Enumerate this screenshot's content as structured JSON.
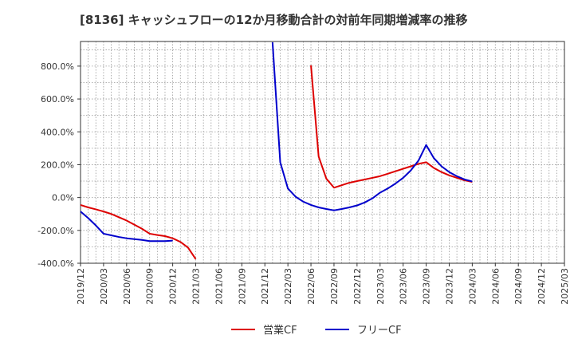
{
  "chart_data": {
    "type": "line",
    "title": "[8136]  キャッシュフローの12か月移動合計の対前年同期増減率の推移",
    "xlabel": "",
    "ylabel": "",
    "ylim": [
      -400,
      950
    ],
    "yticks": [
      -400,
      -200,
      0,
      200,
      400,
      600,
      800
    ],
    "ytick_labels": [
      "-400.0%",
      "-200.0%",
      "0.0%",
      "200.0%",
      "400.0%",
      "600.0%",
      "800.0%"
    ],
    "xtick_labels": [
      "2019/12",
      "2020/03",
      "2020/06",
      "2020/09",
      "2020/12",
      "2021/03",
      "2021/06",
      "2021/09",
      "2021/12",
      "2022/03",
      "2022/06",
      "2022/09",
      "2022/12",
      "2023/03",
      "2023/06",
      "2023/09",
      "2023/12",
      "2024/03",
      "2024/06",
      "2024/09",
      "2024/12",
      "2025/03"
    ],
    "series": [
      {
        "name": "営業CF",
        "color": "#dd0000",
        "segments": [
          [
            [
              "2019/12",
              -45
            ],
            [
              "2020/01",
              -60
            ],
            [
              "2020/02",
              -72
            ],
            [
              "2020/03",
              -85
            ],
            [
              "2020/04",
              -100
            ],
            [
              "2020/05",
              -120
            ],
            [
              "2020/06",
              -140
            ],
            [
              "2020/07",
              -165
            ],
            [
              "2020/08",
              -190
            ],
            [
              "2020/09",
              -220
            ],
            [
              "2020/10",
              -228
            ],
            [
              "2020/11",
              -235
            ],
            [
              "2020/12",
              -248
            ],
            [
              "2021/01",
              -270
            ],
            [
              "2021/02",
              -305
            ],
            [
              "2021/03",
              -375
            ]
          ],
          [
            [
              "2022/06",
              805
            ],
            [
              "2022/07",
              250
            ],
            [
              "2022/08",
              115
            ],
            [
              "2022/09",
              60
            ],
            [
              "2022/10",
              75
            ],
            [
              "2022/11",
              90
            ],
            [
              "2022/12",
              100
            ],
            [
              "2023/01",
              110
            ],
            [
              "2023/02",
              120
            ],
            [
              "2023/03",
              130
            ],
            [
              "2023/04",
              145
            ],
            [
              "2023/05",
              160
            ],
            [
              "2023/06",
              175
            ],
            [
              "2023/07",
              190
            ],
            [
              "2023/08",
              205
            ],
            [
              "2023/09",
              215
            ],
            [
              "2023/10",
              180
            ],
            [
              "2023/11",
              155
            ],
            [
              "2023/12",
              135
            ],
            [
              "2024/01",
              120
            ],
            [
              "2024/02",
              105
            ],
            [
              "2024/03",
              95
            ]
          ]
        ]
      },
      {
        "name": "フリーCF",
        "color": "#0000cc",
        "segments": [
          [
            [
              "2019/12",
              -85
            ],
            [
              "2020/01",
              -125
            ],
            [
              "2020/02",
              -170
            ],
            [
              "2020/03",
              -220
            ],
            [
              "2020/04",
              -230
            ],
            [
              "2020/05",
              -240
            ],
            [
              "2020/06",
              -248
            ],
            [
              "2020/07",
              -253
            ],
            [
              "2020/08",
              -258
            ],
            [
              "2020/09",
              -265
            ],
            [
              "2020/10",
              -265
            ],
            [
              "2020/11",
              -265
            ],
            [
              "2020/12",
              -262
            ]
          ],
          [
            [
              "2022/01",
              945
            ],
            [
              "2022/02",
              215
            ],
            [
              "2022/03",
              55
            ],
            [
              "2022/04",
              5
            ],
            [
              "2022/05",
              -25
            ],
            [
              "2022/06",
              -45
            ],
            [
              "2022/07",
              -60
            ],
            [
              "2022/08",
              -70
            ],
            [
              "2022/09",
              -78
            ],
            [
              "2022/10",
              -70
            ],
            [
              "2022/11",
              -60
            ],
            [
              "2022/12",
              -48
            ],
            [
              "2023/01",
              -30
            ],
            [
              "2023/02",
              -5
            ],
            [
              "2023/03",
              30
            ],
            [
              "2023/04",
              55
            ],
            [
              "2023/05",
              85
            ],
            [
              "2023/06",
              120
            ],
            [
              "2023/07",
              165
            ],
            [
              "2023/08",
              225
            ],
            [
              "2023/09",
              320
            ],
            [
              "2023/10",
              240
            ],
            [
              "2023/11",
              190
            ],
            [
              "2023/12",
              155
            ],
            [
              "2024/01",
              130
            ],
            [
              "2024/02",
              110
            ],
            [
              "2024/03",
              98
            ]
          ]
        ]
      }
    ],
    "legend": {
      "position": "bottom-center"
    }
  }
}
